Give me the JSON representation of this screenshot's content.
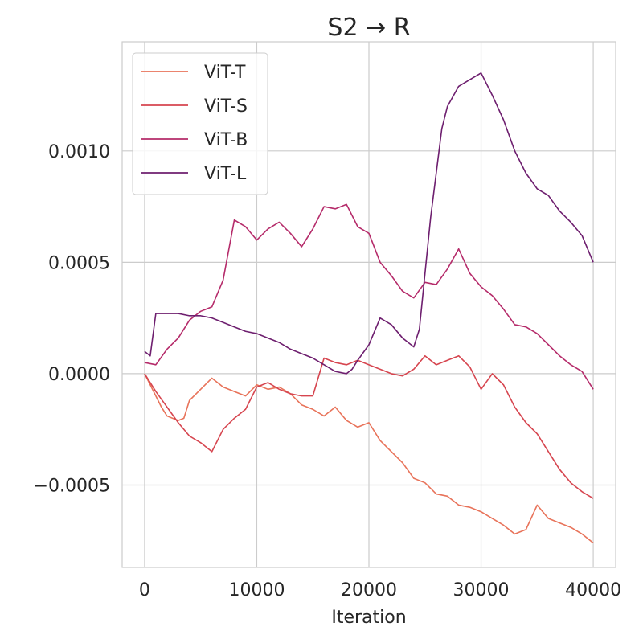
{
  "chart_data": {
    "type": "line",
    "title": "S2 → R",
    "xlabel": "Iteration",
    "ylabel": "",
    "xlim": [
      -2000,
      42000
    ],
    "ylim": [
      -0.00087,
      0.00149
    ],
    "grid": true,
    "legend_position": "top-left",
    "x_ticks": [
      {
        "value": 0,
        "label": "0"
      },
      {
        "value": 10000,
        "label": "10000"
      },
      {
        "value": 20000,
        "label": "20000"
      },
      {
        "value": 30000,
        "label": "30000"
      },
      {
        "value": 40000,
        "label": "40000"
      }
    ],
    "y_ticks": [
      {
        "value": -0.0005,
        "label": "−0.0005"
      },
      {
        "value": 0.0,
        "label": "0.0000"
      },
      {
        "value": 0.0005,
        "label": "0.0005"
      },
      {
        "value": 0.001,
        "label": "0.0010"
      }
    ],
    "series": [
      {
        "name": "ViT-T",
        "color": "#e8735a",
        "x": [
          0,
          500,
          1000,
          1500,
          2000,
          2500,
          3000,
          3500,
          4000,
          5000,
          6000,
          7000,
          8000,
          9000,
          10000,
          11000,
          12000,
          13000,
          14000,
          15000,
          16000,
          17000,
          18000,
          19000,
          20000,
          21000,
          22000,
          23000,
          24000,
          25000,
          26000,
          27000,
          28000,
          29000,
          30000,
          31000,
          32000,
          33000,
          34000,
          35000,
          36000,
          37000,
          38000,
          39000,
          40000
        ],
        "y": [
          0.0,
          -5e-05,
          -0.0001,
          -0.00015,
          -0.00019,
          -0.0002,
          -0.00021,
          -0.0002,
          -0.00012,
          -7e-05,
          -2e-05,
          -6e-05,
          -8e-05,
          -0.0001,
          -5e-05,
          -7e-05,
          -6e-05,
          -9e-05,
          -0.00014,
          -0.00016,
          -0.00019,
          -0.00015,
          -0.00021,
          -0.00024,
          -0.00022,
          -0.0003,
          -0.00035,
          -0.0004,
          -0.00047,
          -0.00049,
          -0.00054,
          -0.00055,
          -0.00059,
          -0.0006,
          -0.00062,
          -0.00065,
          -0.00068,
          -0.00072,
          -0.0007,
          -0.00059,
          -0.00065,
          -0.00067,
          -0.00069,
          -0.00072,
          -0.00076
        ]
      },
      {
        "name": "ViT-S",
        "color": "#d6454f",
        "x": [
          0,
          1000,
          2000,
          3000,
          4000,
          5000,
          6000,
          7000,
          8000,
          9000,
          10000,
          11000,
          12000,
          13000,
          14000,
          15000,
          16000,
          17000,
          18000,
          19000,
          20000,
          21000,
          22000,
          23000,
          24000,
          25000,
          26000,
          27000,
          28000,
          29000,
          30000,
          31000,
          32000,
          33000,
          34000,
          35000,
          36000,
          37000,
          38000,
          39000,
          40000
        ],
        "y": [
          0.0,
          -8e-05,
          -0.00015,
          -0.00022,
          -0.00028,
          -0.00031,
          -0.00035,
          -0.00025,
          -0.0002,
          -0.00016,
          -6e-05,
          -4e-05,
          -7e-05,
          -9e-05,
          -0.0001,
          -0.0001,
          7e-05,
          5e-05,
          4e-05,
          6e-05,
          4e-05,
          2e-05,
          0.0,
          -1e-05,
          2e-05,
          8e-05,
          4e-05,
          6e-05,
          8e-05,
          3e-05,
          -7e-05,
          0.0,
          -5e-05,
          -0.00015,
          -0.00022,
          -0.00027,
          -0.00035,
          -0.00043,
          -0.00049,
          -0.00053,
          -0.00056
        ]
      },
      {
        "name": "ViT-B",
        "color": "#b52b6a",
        "x": [
          0,
          1000,
          2000,
          3000,
          4000,
          5000,
          6000,
          7000,
          8000,
          9000,
          10000,
          11000,
          12000,
          13000,
          14000,
          15000,
          16000,
          17000,
          18000,
          19000,
          20000,
          21000,
          22000,
          23000,
          24000,
          25000,
          26000,
          27000,
          28000,
          29000,
          30000,
          31000,
          32000,
          33000,
          34000,
          35000,
          36000,
          37000,
          38000,
          39000,
          40000
        ],
        "y": [
          5e-05,
          4e-05,
          0.00011,
          0.00016,
          0.00024,
          0.00028,
          0.0003,
          0.00042,
          0.00069,
          0.00066,
          0.0006,
          0.00065,
          0.00068,
          0.00063,
          0.00057,
          0.00065,
          0.00075,
          0.00074,
          0.00076,
          0.00066,
          0.00063,
          0.0005,
          0.00044,
          0.00037,
          0.00034,
          0.00041,
          0.0004,
          0.00047,
          0.00056,
          0.00045,
          0.00039,
          0.00035,
          0.00029,
          0.00022,
          0.00021,
          0.00018,
          0.00013,
          8e-05,
          4e-05,
          1e-05,
          -7e-05
        ]
      },
      {
        "name": "ViT-L",
        "color": "#6e1f6f",
        "x": [
          0,
          500,
          1000,
          2000,
          3000,
          4000,
          5000,
          6000,
          7000,
          8000,
          9000,
          10000,
          11000,
          12000,
          13000,
          14000,
          15000,
          16000,
          17000,
          18000,
          18500,
          19000,
          20000,
          21000,
          22000,
          23000,
          24000,
          24500,
          25000,
          25500,
          26000,
          26500,
          27000,
          28000,
          29000,
          30000,
          31000,
          32000,
          33000,
          34000,
          35000,
          36000,
          37000,
          38000,
          39000,
          40000
        ],
        "y": [
          0.0001,
          8e-05,
          0.00027,
          0.00027,
          0.00027,
          0.00026,
          0.00026,
          0.00025,
          0.00023,
          0.00021,
          0.00019,
          0.00018,
          0.00016,
          0.00014,
          0.00011,
          9e-05,
          7e-05,
          4e-05,
          1e-05,
          0.0,
          2e-05,
          6e-05,
          0.00013,
          0.00025,
          0.00022,
          0.00016,
          0.00012,
          0.0002,
          0.00045,
          0.0007,
          0.0009,
          0.0011,
          0.0012,
          0.00129,
          0.00132,
          0.00135,
          0.00125,
          0.00114,
          0.001,
          0.0009,
          0.00083,
          0.0008,
          0.00073,
          0.00068,
          0.00062,
          0.0005
        ]
      }
    ]
  }
}
